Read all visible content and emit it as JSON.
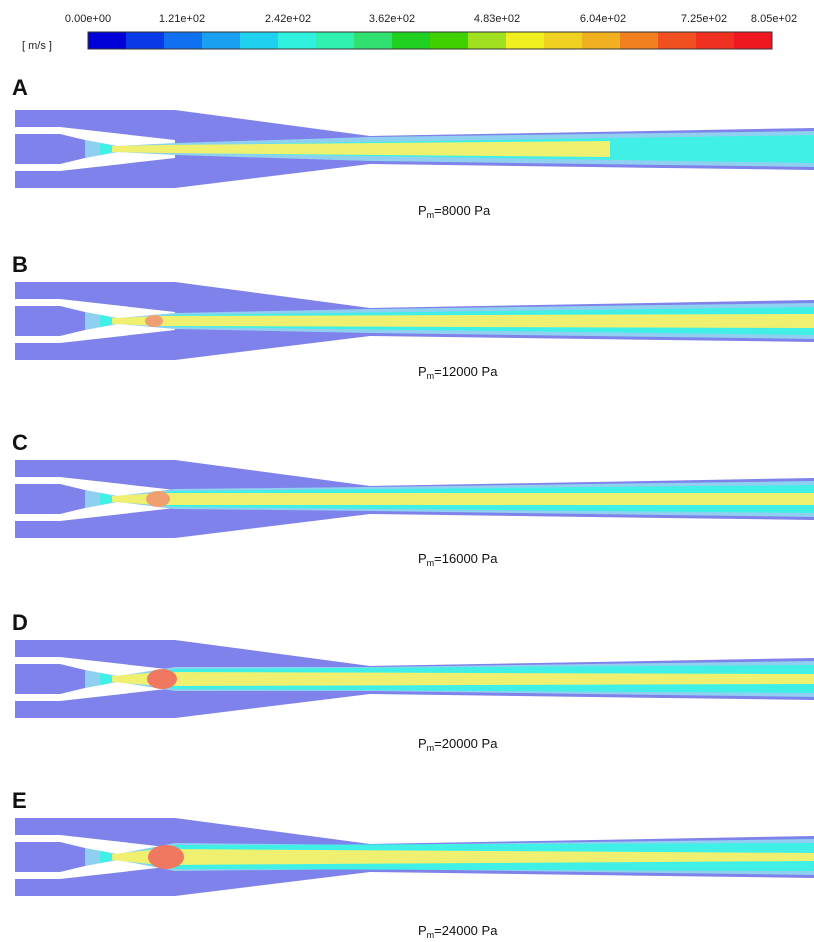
{
  "colorbar": {
    "unit": "[ m/s ]",
    "ticks": [
      "0.00e+00",
      "1.21e+02",
      "2.42e+02",
      "3.62e+02",
      "4.83e+02",
      "6.04e+02",
      "7.25e+02",
      "8.05e+02"
    ]
  },
  "panels": [
    {
      "letter": "A",
      "caption": {
        "symbol": "P",
        "subscript": "m",
        "text": "=8000  Pa"
      }
    },
    {
      "letter": "B",
      "caption": {
        "symbol": "P",
        "subscript": "m",
        "text": "=12000  Pa"
      }
    },
    {
      "letter": "C",
      "caption": {
        "symbol": "P",
        "subscript": "m",
        "text": "=16000  Pa"
      }
    },
    {
      "letter": "D",
      "caption": {
        "symbol": "P",
        "subscript": "m",
        "text": "=20000  Pa"
      }
    },
    {
      "letter": "E",
      "caption": {
        "symbol": "P",
        "subscript": "m",
        "text": "=24000  Pa"
      }
    }
  ]
}
